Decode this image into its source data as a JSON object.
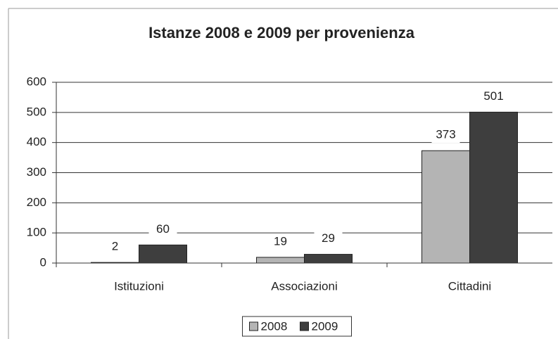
{
  "chart_data": {
    "type": "bar",
    "title": "Istanze 2008 e 2009 per provenienza",
    "categories": [
      "Istituzioni",
      "Associazioni",
      "Cittadini"
    ],
    "series": [
      {
        "name": "2008",
        "color": "#b4b4b4",
        "values": [
          2,
          19,
          373
        ]
      },
      {
        "name": "2009",
        "color": "#3e3e3e",
        "values": [
          60,
          29,
          501
        ]
      }
    ],
    "ylim": [
      0,
      600
    ],
    "yticks": [
      0,
      100,
      200,
      300,
      400,
      500,
      600
    ],
    "grid": true,
    "legend": "bottom"
  }
}
